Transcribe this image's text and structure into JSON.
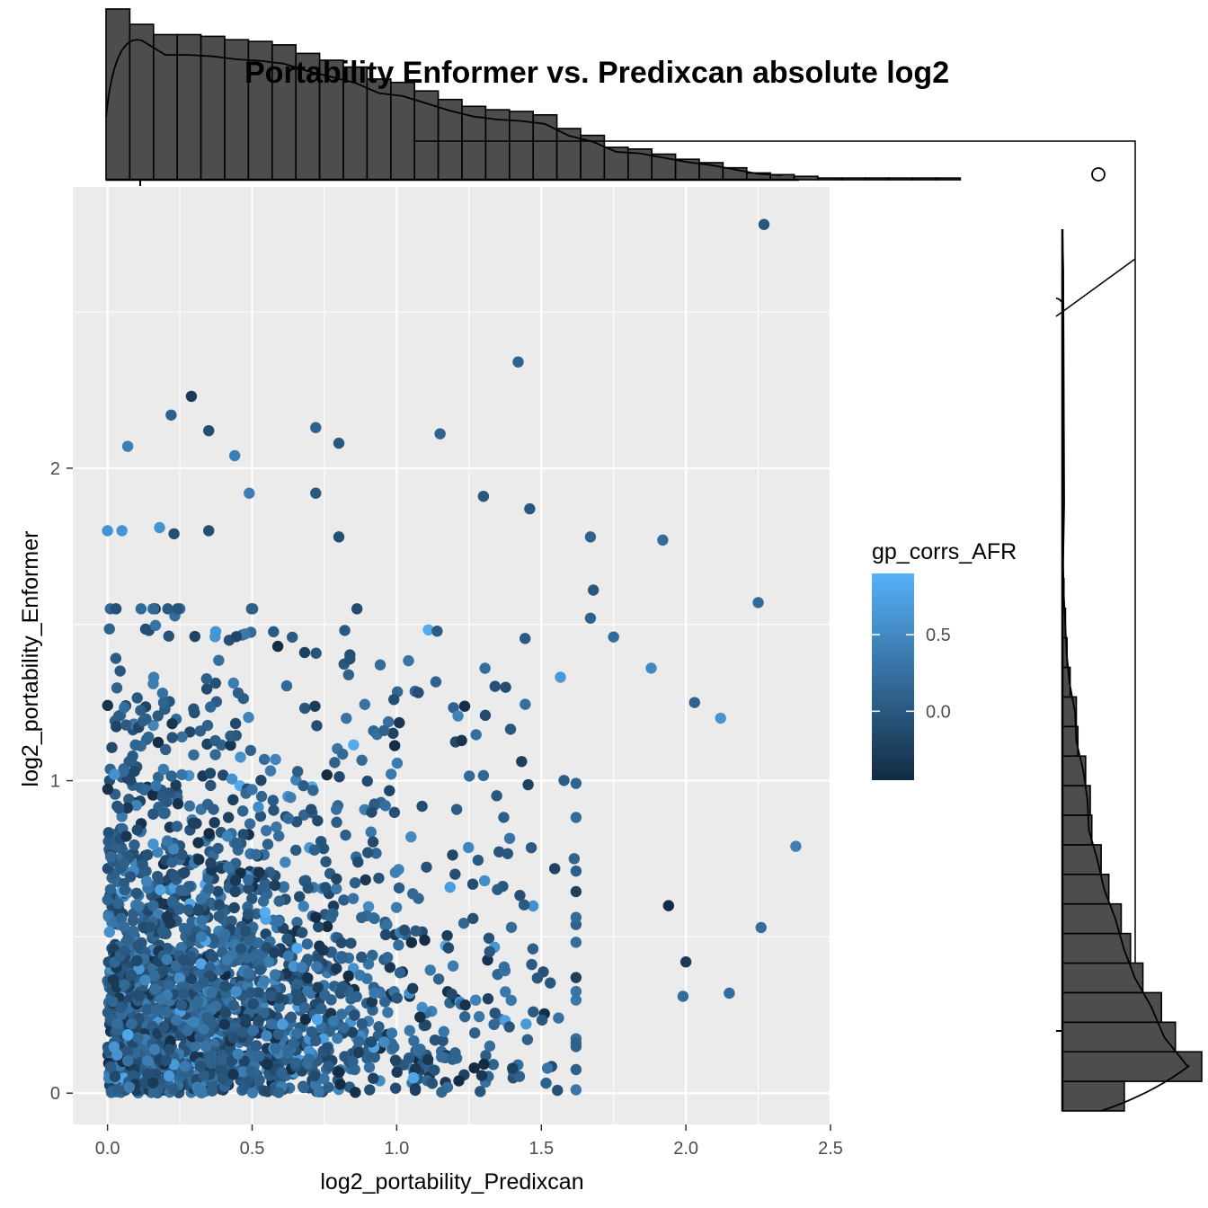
{
  "chart_data": {
    "type": "scatter",
    "title": "Portability Enformer vs. Predixcan absolute log2",
    "xlabel": "log2_portability_Predixcan",
    "ylabel": "log2_portability_Enformer",
    "xlim": [
      -0.12,
      2.5
    ],
    "ylim": [
      -0.1,
      2.9
    ],
    "x_ticks": [
      {
        "value": 0.0,
        "label": "0.0"
      },
      {
        "value": 0.5,
        "label": "0.5"
      },
      {
        "value": 1.0,
        "label": "1.0"
      },
      {
        "value": 1.5,
        "label": "1.5"
      },
      {
        "value": 2.0,
        "label": "2.0"
      },
      {
        "value": 2.5,
        "label": "2.5"
      }
    ],
    "y_ticks": [
      {
        "value": 0,
        "label": "0"
      },
      {
        "value": 1,
        "label": "1"
      },
      {
        "value": 2,
        "label": "2"
      }
    ],
    "grid": true,
    "legend": {
      "title": "gp_corrs_AFR",
      "position": "right",
      "type": "continuous",
      "range": [
        -0.45,
        0.9
      ],
      "ticks": [
        {
          "value": 0.5,
          "label": "0.5"
        },
        {
          "value": 0.0,
          "label": "0.0"
        }
      ],
      "low_color": "#132B43",
      "high_color": "#56B1F7"
    },
    "highlighted_points": [
      {
        "x": 2.27,
        "y": 2.78,
        "color": 0.0
      },
      {
        "x": 1.42,
        "y": 2.34,
        "color": 0.1
      },
      {
        "x": 0.29,
        "y": 2.23,
        "color": -0.3
      },
      {
        "x": 0.22,
        "y": 2.17,
        "color": 0.1
      },
      {
        "x": 0.72,
        "y": 2.13,
        "color": 0.1
      },
      {
        "x": 0.35,
        "y": 2.12,
        "color": -0.1
      },
      {
        "x": 1.15,
        "y": 2.11,
        "color": 0.1
      },
      {
        "x": 0.8,
        "y": 2.08,
        "color": 0.0
      },
      {
        "x": 0.07,
        "y": 2.07,
        "color": 0.4
      },
      {
        "x": 0.44,
        "y": 2.04,
        "color": 0.4
      },
      {
        "x": 0.49,
        "y": 1.92,
        "color": 0.4
      },
      {
        "x": 1.3,
        "y": 1.91,
        "color": 0.0
      },
      {
        "x": 0.72,
        "y": 1.92,
        "color": 0.0
      },
      {
        "x": 1.46,
        "y": 1.87,
        "color": 0.0
      },
      {
        "x": 0.0,
        "y": 1.8,
        "color": 0.6
      },
      {
        "x": 0.05,
        "y": 1.8,
        "color": 0.6
      },
      {
        "x": 0.18,
        "y": 1.81,
        "color": 0.6
      },
      {
        "x": 0.23,
        "y": 1.79,
        "color": -0.1
      },
      {
        "x": 0.35,
        "y": 1.8,
        "color": -0.1
      },
      {
        "x": 0.8,
        "y": 1.78,
        "color": -0.1
      },
      {
        "x": 1.67,
        "y": 1.78,
        "color": 0.1
      },
      {
        "x": 1.92,
        "y": 1.77,
        "color": 0.2
      },
      {
        "x": 2.25,
        "y": 1.57,
        "color": 0.2
      },
      {
        "x": 1.68,
        "y": 1.61,
        "color": 0.0
      },
      {
        "x": 1.67,
        "y": 1.52,
        "color": 0.1
      },
      {
        "x": 1.75,
        "y": 1.46,
        "color": 0.2
      },
      {
        "x": 1.88,
        "y": 1.36,
        "color": 0.5
      },
      {
        "x": 2.12,
        "y": 1.2,
        "color": 0.6
      },
      {
        "x": 2.03,
        "y": 1.25,
        "color": 0.1
      },
      {
        "x": 1.94,
        "y": 0.6,
        "color": -0.5
      },
      {
        "x": 2.38,
        "y": 0.79,
        "color": 0.4
      },
      {
        "x": 2.26,
        "y": 0.53,
        "color": 0.2
      },
      {
        "x": 2.15,
        "y": 0.32,
        "color": 0.2
      },
      {
        "x": 2.0,
        "y": 0.42,
        "color": -0.3
      },
      {
        "x": 1.99,
        "y": 0.31,
        "color": 0.2
      }
    ],
    "cloud_summary": {
      "n_points": 2200,
      "x_range": [
        0.0,
        1.6
      ],
      "y_range": [
        0.0,
        1.5
      ],
      "density": "highest near origin, decreasing with x and y"
    },
    "top_marginal": {
      "type": "histogram",
      "variable": "log2_portability_Predixcan",
      "bin_width": 0.0816,
      "counts": [
        100,
        91,
        85,
        85,
        84,
        82,
        81,
        79,
        74,
        70,
        66,
        59,
        57,
        52,
        47,
        43,
        41,
        40,
        38,
        30,
        26,
        19,
        18,
        15,
        12,
        10,
        7,
        4,
        3,
        2,
        1,
        1,
        1,
        1,
        1,
        1,
        0,
        0,
        0,
        0,
        0,
        0,
        0,
        0,
        0,
        0,
        0,
        0,
        0,
        0
      ]
    },
    "right_marginal": {
      "type": "histogram",
      "variable": "log2_portability_Enformer",
      "counts_bottom_to_top": [
        40,
        90,
        73,
        64,
        52,
        44,
        38,
        30,
        25,
        19,
        18,
        15,
        10,
        9,
        5,
        3,
        2,
        1,
        0.5
      ]
    }
  }
}
